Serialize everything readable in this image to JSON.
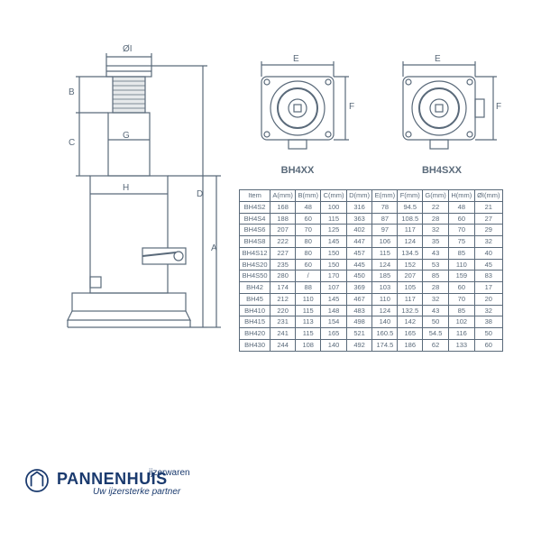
{
  "diagram": {
    "side_labels": {
      "OI": "ØI",
      "B": "B",
      "C": "C",
      "G": "G",
      "H": "H",
      "D": "D",
      "A": "A"
    },
    "top_labels": {
      "E": "E",
      "F": "F"
    },
    "top_view_left": "BH4XX",
    "top_view_right": "BH4SXX",
    "stroke": "#5a6a7a"
  },
  "table": {
    "columns": [
      "Item",
      "A(mm)",
      "B(mm)",
      "C(mm)",
      "D(mm)",
      "E(mm)",
      "F(mm)",
      "G(mm)",
      "H(mm)",
      "ØI(mm)"
    ],
    "rows": [
      [
        "BH4S2",
        "168",
        "48",
        "100",
        "316",
        "78",
        "94.5",
        "22",
        "48",
        "21"
      ],
      [
        "BH4S4",
        "188",
        "60",
        "115",
        "363",
        "87",
        "108.5",
        "28",
        "60",
        "27"
      ],
      [
        "BH4S6",
        "207",
        "70",
        "125",
        "402",
        "97",
        "117",
        "32",
        "70",
        "29"
      ],
      [
        "BH4S8",
        "222",
        "80",
        "145",
        "447",
        "106",
        "124",
        "35",
        "75",
        "32"
      ],
      [
        "BH4S12",
        "227",
        "80",
        "150",
        "457",
        "115",
        "134.5",
        "43",
        "85",
        "40"
      ],
      [
        "BH4S20",
        "235",
        "60",
        "150",
        "445",
        "124",
        "152",
        "53",
        "110",
        "45"
      ],
      [
        "BH4S50",
        "280",
        "/",
        "170",
        "450",
        "185",
        "207",
        "85",
        "159",
        "83"
      ],
      [
        "BH42",
        "174",
        "88",
        "107",
        "369",
        "103",
        "105",
        "28",
        "60",
        "17"
      ],
      [
        "BH45",
        "212",
        "110",
        "145",
        "467",
        "110",
        "117",
        "32",
        "70",
        "20"
      ],
      [
        "BH410",
        "220",
        "115",
        "148",
        "483",
        "124",
        "132.5",
        "43",
        "85",
        "32"
      ],
      [
        "BH415",
        "231",
        "113",
        "154",
        "498",
        "140",
        "142",
        "50",
        "102",
        "38"
      ],
      [
        "BH420",
        "241",
        "115",
        "165",
        "521",
        "160.5",
        "165",
        "54.5",
        "116",
        "50"
      ],
      [
        "BH430",
        "244",
        "108",
        "140",
        "492",
        "174.5",
        "186",
        "62",
        "133",
        "60"
      ]
    ]
  },
  "logo": {
    "sub": "ijzerwaren",
    "brand": "PANNENHUIS",
    "tagline": "Uw ijzersterke partner",
    "color": "#1a3a6e"
  }
}
